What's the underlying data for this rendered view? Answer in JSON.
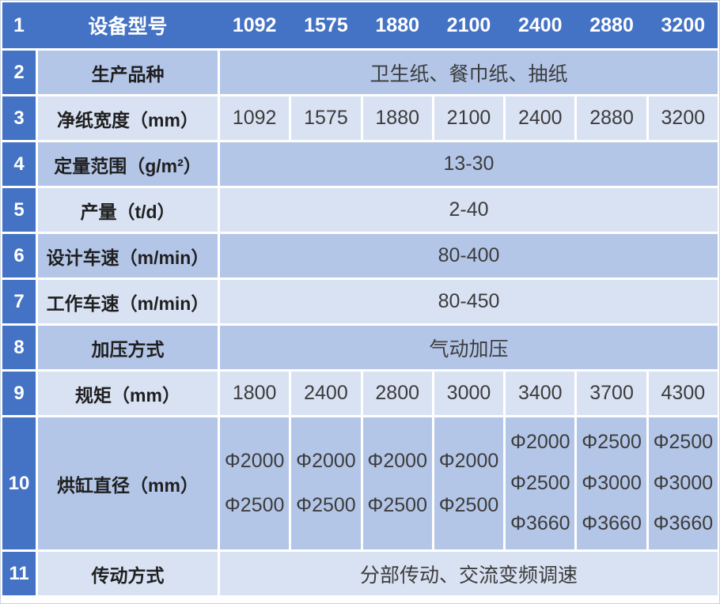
{
  "colors": {
    "header_blue": "#4472C4",
    "band_medium": "#B4C6E7",
    "band_light": "#D9E2F3",
    "cell_border": "#FFFFFF",
    "outer_border": "#CCD4E2",
    "header_text": "#FFFFFF",
    "label_text": "#1F1F1F",
    "value_text": "#3C3C3C"
  },
  "table": {
    "header": {
      "no": "1",
      "label": "设备型号",
      "models": [
        "1092",
        "1575",
        "1880",
        "2100",
        "2400",
        "2880",
        "3200"
      ]
    },
    "rows": [
      {
        "no": "2",
        "label": "生产品种",
        "merged": "卫生纸、餐巾纸、抽纸"
      },
      {
        "no": "3",
        "label": "净纸宽度（mm）",
        "values": [
          "1092",
          "1575",
          "1880",
          "2100",
          "2400",
          "2880",
          "3200"
        ]
      },
      {
        "no": "4",
        "label": "定量范围（g/m²）",
        "merged": "13-30"
      },
      {
        "no": "5",
        "label": "产量（t/d）",
        "merged": "2-40"
      },
      {
        "no": "6",
        "label": "设计车速（m/min）",
        "merged": "80-400"
      },
      {
        "no": "7",
        "label": "工作车速（m/min）",
        "merged": "80-450"
      },
      {
        "no": "8",
        "label": "加压方式",
        "merged": "气动加压"
      },
      {
        "no": "9",
        "label": "规矩（mm）",
        "values": [
          "1800",
          "2400",
          "2800",
          "3000",
          "3400",
          "3700",
          "4300"
        ]
      },
      {
        "no": "10",
        "label": "烘缸直径（mm）",
        "cells": [
          [
            "Φ2000",
            "Φ2500"
          ],
          [
            "Φ2000",
            "Φ2500"
          ],
          [
            "Φ2000",
            "Φ2500"
          ],
          [
            "Φ2000",
            "Φ2500"
          ],
          [
            "Φ2000",
            "Φ2500",
            "Φ3660"
          ],
          [
            "Φ2500",
            "Φ3000",
            "Φ3660"
          ],
          [
            "Φ2500",
            "Φ3000",
            "Φ3660"
          ]
        ]
      },
      {
        "no": "11",
        "label": "传动方式",
        "merged": "分部传动、交流变频调速"
      }
    ]
  }
}
